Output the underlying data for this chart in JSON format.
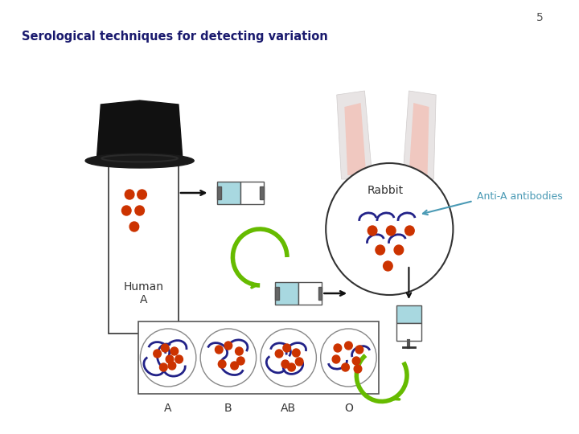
{
  "slide_number": "5",
  "title": "Serological techniques for detecting variation",
  "title_color": "#1a1a6e",
  "title_fontsize": 10.5,
  "bg_color": "#ffffff",
  "slide_number_color": "#555555",
  "anti_a_label": "Anti-A antibodies",
  "anti_a_color": "#4a9ab5",
  "rabbit_label": "Rabbit",
  "human_label": "Human\nA",
  "blood_labels": [
    "A",
    "B",
    "AB",
    "O"
  ],
  "red_cell_color": "#cc3300",
  "blue_antibody_color": "#222288",
  "box_color": "#a8d8e0",
  "arrow_color": "#111111",
  "arrow_green": "#66bb00",
  "hat_color": "#111111",
  "hat_brim_color": "#1a1a1a",
  "ear_outer_color": "#e8e4e4",
  "ear_inner_color": "#f0c8c0",
  "label_color": "#333333"
}
